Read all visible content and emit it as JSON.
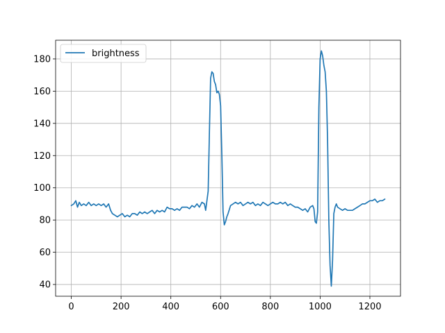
{
  "chart_data": {
    "type": "line",
    "title": "",
    "xlabel": "",
    "ylabel": "",
    "xlim": [
      -63,
      1323
    ],
    "ylim": [
      32.7,
      191.6
    ],
    "x_ticks": [
      0,
      200,
      400,
      600,
      800,
      1000,
      1200
    ],
    "y_ticks": [
      40,
      60,
      80,
      100,
      120,
      140,
      160,
      180
    ],
    "grid": true,
    "legend_position": "top-left",
    "series": [
      {
        "name": "brightness",
        "color": "#1f77b4",
        "x": [
          0,
          10,
          18,
          25,
          32,
          40,
          50,
          60,
          70,
          80,
          90,
          100,
          110,
          120,
          130,
          140,
          150,
          158,
          165,
          175,
          185,
          195,
          205,
          215,
          225,
          235,
          245,
          255,
          265,
          275,
          285,
          295,
          305,
          315,
          325,
          335,
          345,
          355,
          365,
          375,
          385,
          395,
          405,
          415,
          425,
          435,
          445,
          455,
          465,
          475,
          485,
          495,
          505,
          515,
          525,
          535,
          540,
          545,
          550,
          555,
          560,
          565,
          570,
          575,
          580,
          585,
          590,
          595,
          600,
          605,
          610,
          615,
          620,
          625,
          630,
          640,
          650,
          660,
          670,
          680,
          690,
          700,
          710,
          720,
          730,
          740,
          750,
          760,
          770,
          780,
          790,
          800,
          810,
          820,
          830,
          840,
          850,
          860,
          870,
          880,
          890,
          900,
          910,
          920,
          930,
          940,
          950,
          960,
          970,
          975,
          980,
          985,
          990,
          995,
          1000,
          1005,
          1010,
          1015,
          1020,
          1025,
          1030,
          1035,
          1040,
          1045,
          1050,
          1055,
          1060,
          1065,
          1070,
          1080,
          1090,
          1100,
          1110,
          1120,
          1130,
          1140,
          1150,
          1160,
          1170,
          1180,
          1190,
          1200,
          1210,
          1220,
          1230,
          1240,
          1250,
          1260
        ],
        "y": [
          89,
          90,
          92,
          88,
          91,
          89,
          90,
          89,
          91,
          89,
          90,
          89,
          90,
          89,
          90,
          88,
          90,
          86,
          84,
          83,
          82,
          83,
          84,
          82,
          83,
          82,
          84,
          84,
          83,
          85,
          84,
          85,
          84,
          85,
          86,
          84,
          86,
          85,
          86,
          85,
          88,
          87,
          87,
          86,
          87,
          86,
          88,
          88,
          88,
          87,
          89,
          88,
          90,
          88,
          91,
          90,
          86,
          92,
          98,
          135,
          168,
          172,
          171,
          166,
          164,
          159,
          160,
          158,
          151,
          120,
          85,
          77,
          79,
          82,
          84,
          89,
          90,
          91,
          90,
          91,
          89,
          90,
          91,
          90,
          91,
          89,
          90,
          89,
          91,
          90,
          89,
          90,
          91,
          90,
          90,
          91,
          90,
          91,
          89,
          90,
          89,
          88,
          88,
          87,
          86,
          87,
          85,
          88,
          89,
          87,
          79,
          78,
          85,
          150,
          180,
          185,
          182,
          176,
          172,
          160,
          130,
          80,
          52,
          39,
          55,
          84,
          88,
          90,
          88,
          87,
          86,
          87,
          86,
          86,
          86,
          87,
          88,
          89,
          90,
          90,
          91,
          92,
          92,
          93,
          91,
          92,
          92,
          93
        ]
      }
    ]
  }
}
